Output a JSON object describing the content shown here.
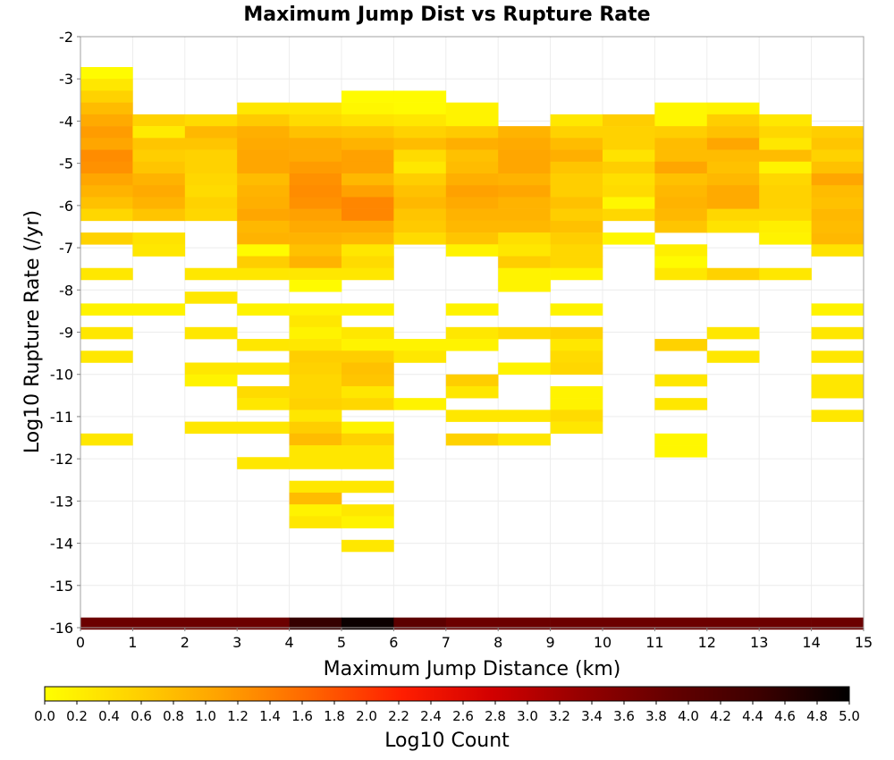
{
  "chart_data": {
    "type": "heatmap",
    "title": "Maximum Jump Dist vs Rupture Rate",
    "xlabel": "Maximum Jump Distance (km)",
    "ylabel": "Log10 Rupture Rate (/yr)",
    "xlim": [
      0,
      15
    ],
    "ylim": [
      -16,
      -2
    ],
    "x_ticks": [
      "0",
      "1",
      "2",
      "3",
      "4",
      "5",
      "6",
      "7",
      "8",
      "9",
      "10",
      "11",
      "12",
      "13",
      "14",
      "15"
    ],
    "y_ticks": [
      "-2",
      "-3",
      "-4",
      "-5",
      "-6",
      "-7",
      "-8",
      "-9",
      "-10",
      "-11",
      "-12",
      "-13",
      "-14",
      "-15",
      "-16"
    ],
    "grid": true,
    "x_bin_width": 1,
    "y_bin_height": 0.28,
    "colorbar": {
      "label": "Log10 Count",
      "min": 0.0,
      "max": 5.0,
      "ticks": [
        "0.0",
        "0.2",
        "0.4",
        "0.6",
        "0.8",
        "1.0",
        "1.2",
        "1.4",
        "1.6",
        "1.8",
        "2.0",
        "2.2",
        "2.4",
        "2.6",
        "2.8",
        "3.0",
        "3.2",
        "3.4",
        "3.6",
        "3.8",
        "4.0",
        "4.2",
        "4.4",
        "4.6",
        "4.8",
        "5.0"
      ],
      "colors": [
        "#ffff00",
        "#ffd200",
        "#ffa000",
        "#ff6400",
        "#ff1e00",
        "#d20000",
        "#960000",
        "#640000",
        "#3c0000",
        "#000000"
      ]
    },
    "cells_x_order": "each row lists 15 log10-count values for x bins 0-1, 1-2, ..., 14-15; null = no ruptures",
    "cells": [
      {
        "y": -2.86,
        "values": [
          0.05,
          null,
          null,
          null,
          null,
          null,
          null,
          null,
          null,
          null,
          null,
          null,
          null,
          null,
          null
        ]
      },
      {
        "y": -3.14,
        "values": [
          0.3,
          null,
          null,
          null,
          null,
          null,
          null,
          null,
          null,
          null,
          null,
          null,
          null,
          null,
          null
        ]
      },
      {
        "y": -3.42,
        "values": [
          0.55,
          null,
          null,
          null,
          null,
          0.05,
          0.05,
          null,
          null,
          null,
          null,
          null,
          null,
          null,
          null
        ]
      },
      {
        "y": -3.7,
        "values": [
          0.8,
          null,
          null,
          0.3,
          0.3,
          0.1,
          0.05,
          0.15,
          null,
          null,
          null,
          0.1,
          0.15,
          null,
          null
        ]
      },
      {
        "y": -3.98,
        "values": [
          1.0,
          0.55,
          0.45,
          0.65,
          0.45,
          0.35,
          0.3,
          0.15,
          null,
          0.3,
          0.6,
          0.1,
          0.6,
          0.3,
          null
        ]
      },
      {
        "y": -4.26,
        "values": [
          1.15,
          0.25,
          0.85,
          0.95,
          0.75,
          0.7,
          0.55,
          0.65,
          0.9,
          0.55,
          0.55,
          0.6,
          0.75,
          0.5,
          0.6
        ]
      },
      {
        "y": -4.54,
        "values": [
          1.05,
          0.7,
          0.7,
          1.0,
          1.0,
          0.9,
          0.8,
          0.95,
          1.0,
          0.8,
          0.55,
          0.8,
          1.05,
          0.3,
          0.7
        ]
      },
      {
        "y": -4.82,
        "values": [
          1.3,
          0.6,
          0.55,
          1.05,
          1.0,
          1.1,
          0.45,
          0.75,
          1.05,
          0.95,
          0.35,
          0.8,
          0.8,
          0.8,
          0.55
        ]
      },
      {
        "y": -5.1,
        "values": [
          1.25,
          0.7,
          0.55,
          1.05,
          1.15,
          1.1,
          0.3,
          0.8,
          1.05,
          0.7,
          0.6,
          1.05,
          0.75,
          0.15,
          0.75
        ]
      },
      {
        "y": -5.38,
        "values": [
          1.05,
          0.9,
          0.5,
          0.8,
          1.25,
          0.85,
          0.6,
          0.95,
          0.9,
          0.6,
          0.4,
          0.75,
          0.85,
          0.5,
          1.05
        ]
      },
      {
        "y": -5.66,
        "values": [
          0.9,
          1.0,
          0.45,
          0.9,
          1.3,
          1.1,
          0.75,
          1.1,
          1.05,
          0.6,
          0.45,
          0.85,
          1.0,
          0.55,
          0.8
        ]
      },
      {
        "y": -5.94,
        "values": [
          0.75,
          0.9,
          0.55,
          0.95,
          1.25,
          1.35,
          0.85,
          1.0,
          0.9,
          0.75,
          0.1,
          0.9,
          1.0,
          0.55,
          0.75
        ]
      },
      {
        "y": -6.22,
        "values": [
          0.5,
          0.7,
          0.5,
          1.05,
          1.1,
          1.35,
          0.7,
          0.9,
          0.9,
          0.6,
          0.5,
          0.85,
          0.5,
          0.5,
          0.85
        ]
      },
      {
        "y": -6.5,
        "values": [
          null,
          null,
          null,
          0.85,
          1.0,
          1.0,
          0.65,
          0.85,
          0.85,
          0.75,
          null,
          0.7,
          0.35,
          0.2,
          0.8
        ]
      },
      {
        "y": -6.78,
        "values": [
          0.55,
          0.35,
          null,
          0.9,
          0.9,
          0.85,
          0.45,
          0.7,
          0.4,
          0.6,
          0.1,
          null,
          null,
          0.15,
          0.85
        ]
      },
      {
        "y": -7.06,
        "values": [
          null,
          0.3,
          null,
          0.05,
          0.75,
          0.3,
          null,
          0.15,
          0.3,
          0.5,
          null,
          0.2,
          null,
          null,
          0.35
        ]
      },
      {
        "y": -7.34,
        "values": [
          null,
          null,
          null,
          0.6,
          0.9,
          0.45,
          null,
          null,
          0.6,
          0.5,
          null,
          0.05,
          null,
          null,
          null
        ]
      },
      {
        "y": -7.62,
        "values": [
          0.3,
          null,
          0.3,
          0.3,
          0.3,
          0.3,
          null,
          null,
          0.15,
          0.15,
          null,
          0.3,
          0.55,
          0.3,
          null
        ]
      },
      {
        "y": -7.9,
        "values": [
          null,
          null,
          null,
          null,
          0.05,
          null,
          null,
          null,
          0.15,
          null,
          null,
          null,
          null,
          null,
          null
        ]
      },
      {
        "y": -8.18,
        "values": [
          null,
          null,
          0.3,
          null,
          null,
          null,
          null,
          null,
          null,
          null,
          null,
          null,
          null,
          null,
          null
        ]
      },
      {
        "y": -8.46,
        "values": [
          0.15,
          0.15,
          null,
          0.15,
          0.15,
          0.15,
          null,
          0.15,
          null,
          0.15,
          null,
          null,
          null,
          null,
          0.15
        ]
      },
      {
        "y": -8.74,
        "values": [
          null,
          null,
          null,
          null,
          0.3,
          null,
          null,
          null,
          null,
          null,
          null,
          null,
          null,
          null,
          null
        ]
      },
      {
        "y": -9.02,
        "values": [
          0.3,
          null,
          0.3,
          null,
          0.15,
          0.3,
          null,
          0.3,
          0.45,
          0.55,
          null,
          null,
          0.3,
          null,
          0.3
        ]
      },
      {
        "y": -9.3,
        "values": [
          null,
          null,
          null,
          0.3,
          0.3,
          0.15,
          0.15,
          0.15,
          null,
          0.3,
          null,
          0.55,
          null,
          null,
          null
        ]
      },
      {
        "y": -9.58,
        "values": [
          0.3,
          null,
          null,
          null,
          0.6,
          0.6,
          0.3,
          null,
          null,
          0.45,
          null,
          null,
          0.3,
          null,
          0.3
        ]
      },
      {
        "y": -9.86,
        "values": [
          null,
          null,
          0.3,
          0.3,
          0.55,
          0.75,
          null,
          null,
          0.15,
          0.5,
          null,
          null,
          null,
          null,
          null
        ]
      },
      {
        "y": -10.14,
        "values": [
          null,
          null,
          0.15,
          null,
          0.5,
          0.7,
          null,
          0.6,
          null,
          null,
          null,
          0.3,
          null,
          null,
          0.3
        ]
      },
      {
        "y": -10.42,
        "values": [
          null,
          null,
          null,
          0.45,
          0.5,
          0.3,
          null,
          0.3,
          null,
          0.15,
          null,
          null,
          null,
          null,
          0.3
        ]
      },
      {
        "y": -10.7,
        "values": [
          null,
          null,
          null,
          0.3,
          0.55,
          0.5,
          0.15,
          null,
          null,
          0.15,
          null,
          0.3,
          null,
          null,
          null
        ]
      },
      {
        "y": -10.98,
        "values": [
          null,
          null,
          null,
          null,
          0.3,
          null,
          null,
          0.3,
          0.3,
          0.45,
          null,
          null,
          null,
          null,
          0.3
        ]
      },
      {
        "y": -11.26,
        "values": [
          null,
          null,
          0.3,
          0.3,
          0.6,
          0.15,
          null,
          null,
          null,
          0.3,
          null,
          null,
          null,
          null,
          null
        ]
      },
      {
        "y": -11.54,
        "values": [
          0.3,
          null,
          null,
          null,
          0.8,
          0.55,
          null,
          0.55,
          0.3,
          null,
          null,
          0.1,
          null,
          null,
          null
        ]
      },
      {
        "y": -11.82,
        "values": [
          null,
          null,
          null,
          null,
          0.3,
          0.3,
          null,
          null,
          null,
          null,
          null,
          0.1,
          null,
          null,
          null
        ]
      },
      {
        "y": -12.1,
        "values": [
          null,
          null,
          null,
          0.3,
          0.3,
          0.3,
          null,
          null,
          null,
          null,
          null,
          null,
          null,
          null,
          null
        ]
      },
      {
        "y": -12.66,
        "values": [
          null,
          null,
          null,
          null,
          0.3,
          0.3,
          null,
          null,
          null,
          null,
          null,
          null,
          null,
          null,
          null
        ]
      },
      {
        "y": -12.94,
        "values": [
          null,
          null,
          null,
          null,
          0.8,
          null,
          null,
          null,
          null,
          null,
          null,
          null,
          null,
          null,
          null
        ]
      },
      {
        "y": -13.22,
        "values": [
          null,
          null,
          null,
          null,
          0.15,
          0.3,
          null,
          null,
          null,
          null,
          null,
          null,
          null,
          null,
          null
        ]
      },
      {
        "y": -13.5,
        "values": [
          null,
          null,
          null,
          null,
          0.3,
          0.15,
          null,
          null,
          null,
          null,
          null,
          null,
          null,
          null,
          null
        ]
      },
      {
        "y": -14.06,
        "values": [
          null,
          null,
          null,
          null,
          null,
          0.3,
          null,
          null,
          null,
          null,
          null,
          null,
          null,
          null,
          null
        ]
      },
      {
        "y": -15.9,
        "values": [
          3.8,
          3.8,
          3.8,
          3.8,
          4.5,
          4.9,
          4.0,
          3.8,
          3.8,
          3.8,
          3.8,
          3.8,
          3.8,
          3.8,
          3.8
        ]
      }
    ]
  }
}
